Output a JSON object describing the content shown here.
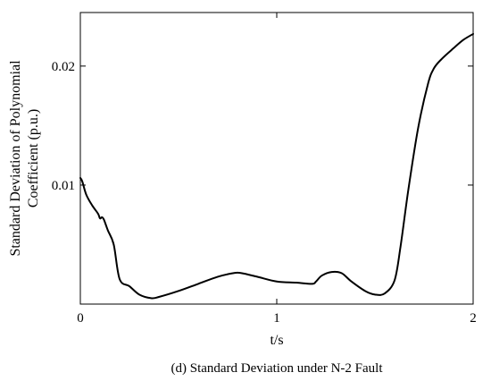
{
  "chart_data": {
    "type": "line",
    "xlabel": "t/s",
    "ylabel_lines": [
      "Standard Deviation of Polynomial",
      "Coefficient (p.u.)"
    ],
    "caption": "(d) Standard Deviation under N-2 Fault",
    "xlim": [
      0,
      2
    ],
    "ylim": [
      0,
      0.0245
    ],
    "x_ticks": [
      0,
      1,
      2
    ],
    "x_tick_labels": [
      "0",
      "1",
      "2"
    ],
    "y_ticks": [
      0.01,
      0.02
    ],
    "y_tick_labels": [
      "0.01",
      "0.02"
    ],
    "grid": false,
    "series": [
      {
        "color": "#000000",
        "x": [
          0,
          0.01,
          0.03,
          0.06,
          0.09,
          0.1,
          0.11,
          0.12,
          0.14,
          0.17,
          0.2,
          0.25,
          0.3,
          0.36,
          0.4,
          0.5,
          0.6,
          0.7,
          0.78,
          0.82,
          0.9,
          1.0,
          1.1,
          1.18,
          1.2,
          1.23,
          1.28,
          1.33,
          1.38,
          1.45,
          1.5,
          1.55,
          1.6,
          1.63,
          1.67,
          1.72,
          1.77,
          1.8,
          1.84,
          1.9,
          1.95,
          2.0
        ],
        "y": [
          0.0106,
          0.0103,
          0.0092,
          0.0083,
          0.0076,
          0.0072,
          0.0073,
          0.0071,
          0.0062,
          0.005,
          0.0021,
          0.0015,
          0.0008,
          0.0005,
          0.0006,
          0.0011,
          0.0017,
          0.0023,
          0.0026,
          0.0026,
          0.0023,
          0.0019,
          0.0018,
          0.0017,
          0.0019,
          0.0024,
          0.0027,
          0.0026,
          0.0019,
          0.0011,
          0.0008,
          0.0009,
          0.002,
          0.0048,
          0.0096,
          0.0148,
          0.0185,
          0.0198,
          0.0206,
          0.0215,
          0.0222,
          0.0227
        ]
      }
    ]
  }
}
